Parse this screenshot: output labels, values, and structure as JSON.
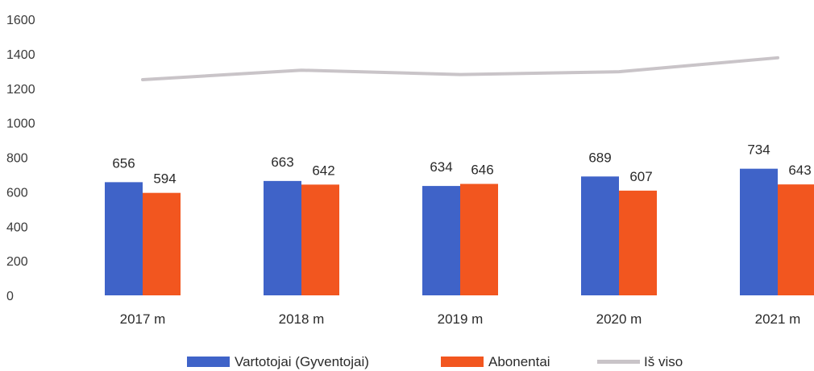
{
  "chart_data": {
    "type": "bar",
    "categories": [
      "2017 m",
      "2018 m",
      "2019 m",
      "2020 m",
      "2021 m"
    ],
    "y_ticks": [
      "0",
      "200",
      "400",
      "600",
      "800",
      "1000",
      "1200",
      "1400",
      "1600"
    ],
    "ylim": [
      0,
      1600
    ],
    "grid": false,
    "legend_position": "bottom",
    "series": [
      {
        "name": "Vartotojai (Gyventojai)",
        "type": "bar",
        "color": "#3f63c8",
        "values": [
          656,
          663,
          634,
          689,
          734
        ]
      },
      {
        "name": "Abonentai",
        "type": "bar",
        "color": "#f2561f",
        "values": [
          594,
          642,
          646,
          607,
          643
        ]
      },
      {
        "name": "Iš viso",
        "type": "line",
        "color": "#c9c4c8",
        "values": [
          1250,
          1305,
          1280,
          1296,
          1377
        ]
      }
    ],
    "data_labels": {
      "Vartotojai (Gyventojai)": [
        "656",
        "663",
        "634",
        "689",
        "734"
      ],
      "Abonentai": [
        "594",
        "642",
        "646",
        "607",
        "643"
      ]
    }
  }
}
